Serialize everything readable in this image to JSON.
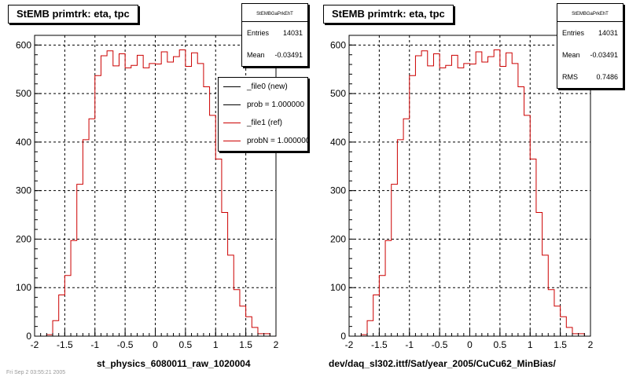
{
  "pads": [
    {
      "title": "StEMB primtrk: eta, tpc",
      "xcaption": "st_physics_6080011_raw_1020004",
      "stats": {
        "name": "StEMBGaPrkEhT",
        "rows": [
          {
            "label": "Entries",
            "value": "14031"
          },
          {
            "label": "Mean",
            "value": "-0.03491"
          }
        ]
      },
      "legend": [
        {
          "label": "_file0 (new)",
          "color": "#000000"
        },
        {
          "label": "prob = 1.000000",
          "color": "#000000"
        },
        {
          "label": "_file1 (ref)",
          "color": "#cc0000"
        },
        {
          "label": "probN = 1.000000",
          "color": "#cc0000"
        }
      ]
    },
    {
      "title": "StEMB primtrk: eta, tpc",
      "xcaption": "dev/daq_sl302.ittf/Sat/year_2005/CuCu62_MinBias/",
      "stats": {
        "name": "StEMBGaPrkEhT",
        "rows": [
          {
            "label": "Entries",
            "value": "14031"
          },
          {
            "label": "Mean",
            "value": "-0.03491"
          },
          {
            "label": "RMS",
            "value": "0.7486"
          }
        ]
      },
      "legend": []
    }
  ],
  "footer": "Fri Sep 2 03:55:21 2005",
  "chart_data": [
    {
      "type": "histogram",
      "title": "StEMB primtrk: eta, tpc",
      "xlabel": "st_physics_6080011_raw_1020004",
      "xlim": [
        -2,
        2
      ],
      "ylim": [
        0,
        620
      ],
      "grid": true,
      "x_ticks": [
        "-2",
        "-1.5",
        "-1",
        "-0.5",
        "0",
        "0.5",
        "1",
        "1.5",
        "2"
      ],
      "y_ticks": [
        "0",
        "100",
        "200",
        "300",
        "400",
        "500",
        "600"
      ],
      "bin_edges_start": -2,
      "bin_width": 0.1,
      "color": "#cc0000",
      "values": [
        0,
        0,
        3,
        32,
        85,
        125,
        197,
        313,
        405,
        448,
        537,
        578,
        588,
        557,
        582,
        553,
        558,
        579,
        553,
        562,
        561,
        586,
        565,
        576,
        590,
        556,
        584,
        562,
        514,
        455,
        365,
        255,
        167,
        96,
        62,
        40,
        18,
        5,
        5,
        0
      ]
    },
    {
      "type": "histogram",
      "title": "StEMB primtrk: eta, tpc",
      "xlabel": "dev/daq_sl302.ittf/Sat/year_2005/CuCu62_MinBias/",
      "xlim": [
        -2,
        2
      ],
      "ylim": [
        0,
        620
      ],
      "grid": true,
      "x_ticks": [
        "-2",
        "-1.5",
        "-1",
        "-0.5",
        "0",
        "0.5",
        "1",
        "1.5",
        "2"
      ],
      "y_ticks": [
        "0",
        "100",
        "200",
        "300",
        "400",
        "500",
        "600"
      ],
      "bin_edges_start": -2,
      "bin_width": 0.1,
      "color": "#cc0000",
      "values": [
        0,
        0,
        3,
        32,
        85,
        125,
        197,
        313,
        405,
        448,
        537,
        578,
        588,
        557,
        582,
        553,
        558,
        579,
        553,
        562,
        561,
        586,
        565,
        576,
        590,
        556,
        584,
        562,
        514,
        455,
        365,
        255,
        167,
        96,
        62,
        40,
        18,
        5,
        5,
        0
      ]
    }
  ]
}
